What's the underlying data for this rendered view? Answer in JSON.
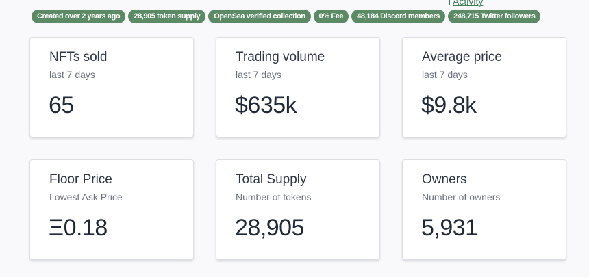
{
  "header": {
    "activity_link": "Activity",
    "badges": [
      "Created over 2 years ago",
      "28,905 token supply",
      "OpenSea verified collection",
      "0% Fee",
      "48,184 Discord members",
      "248,715 Twitter followers"
    ]
  },
  "stats": [
    {
      "title": "NFTs sold",
      "subtitle": "last 7 days",
      "value": "65"
    },
    {
      "title": "Trading volume",
      "subtitle": "last 7 days",
      "value": "$635k"
    },
    {
      "title": "Average price",
      "subtitle": "last 7 days",
      "value": "$9.8k"
    },
    {
      "title": "Floor Price",
      "subtitle": "Lowest Ask Price",
      "value": "Ξ0.18"
    },
    {
      "title": "Total Supply",
      "subtitle": "Number of tokens",
      "value": "28,905"
    },
    {
      "title": "Owners",
      "subtitle": "Number of owners",
      "value": "5,931"
    }
  ],
  "colors": {
    "badge": "#5b8a64",
    "link": "#3b7d57",
    "background": "#f9f9fc"
  }
}
